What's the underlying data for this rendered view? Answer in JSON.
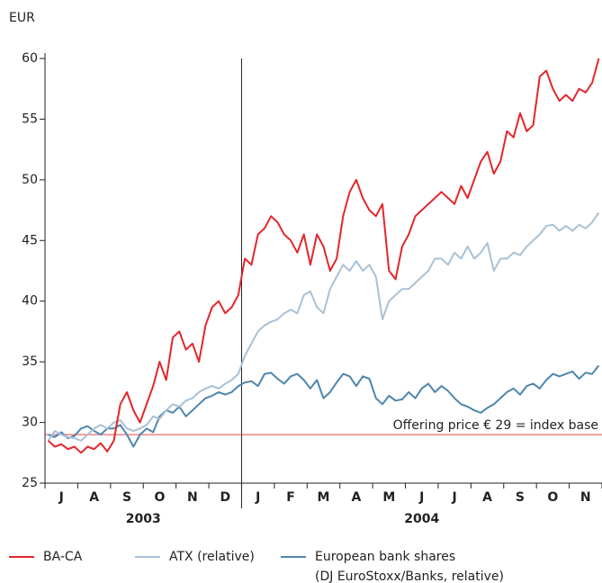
{
  "chart_data": {
    "type": "line",
    "y_axis_label": "EUR",
    "categories": [
      null,
      null,
      "J",
      null,
      null,
      null,
      null,
      "A",
      null,
      null,
      null,
      null,
      "S",
      null,
      null,
      null,
      null,
      "O",
      null,
      null,
      null,
      null,
      "N",
      null,
      null,
      null,
      null,
      "D",
      null,
      null,
      null,
      null,
      "J",
      null,
      null,
      null,
      null,
      "F",
      null,
      null,
      null,
      null,
      "M",
      null,
      null,
      null,
      null,
      "A",
      null,
      null,
      null,
      null,
      "M",
      null,
      null,
      null,
      null,
      "J",
      null,
      null,
      null,
      null,
      "J",
      null,
      null,
      null,
      null,
      "A",
      null,
      null,
      null,
      null,
      "S",
      null,
      null,
      null,
      null,
      "O",
      null,
      null,
      null,
      null,
      "N",
      null,
      null
    ],
    "years": [
      "2003",
      "2004"
    ],
    "series": [
      {
        "name": "BA-CA",
        "color": "#e3262b",
        "values": [
          28.5,
          28.0,
          28.2,
          27.8,
          28.0,
          27.5,
          28.0,
          27.8,
          28.3,
          27.6,
          28.5,
          31.5,
          32.5,
          31.0,
          30.0,
          31.5,
          33.0,
          35.0,
          33.5,
          37.0,
          37.5,
          36.0,
          36.5,
          35.0,
          38.0,
          39.5,
          40.0,
          39.0,
          39.5,
          40.5,
          43.5,
          43.0,
          45.5,
          46.0,
          47.0,
          46.5,
          45.5,
          45.0,
          44.0,
          45.5,
          43.0,
          45.5,
          44.5,
          42.5,
          43.5,
          47.0,
          49.0,
          50.0,
          48.5,
          47.5,
          47.0,
          48.0,
          42.5,
          41.8,
          44.5,
          45.5,
          47.0,
          47.5,
          48.0,
          48.5,
          49.0,
          48.5,
          48.0,
          49.5,
          48.5,
          50.0,
          51.5,
          52.3,
          50.5,
          51.5,
          54.0,
          53.5,
          55.5,
          54.0,
          54.5,
          58.5,
          59.0,
          57.5,
          56.5,
          57.0,
          56.5,
          57.5,
          57.2,
          58.0,
          60.0
        ]
      },
      {
        "name": "ATX (relative)",
        "color": "#a8c1d6",
        "values": [
          28.5,
          29.3,
          29.0,
          28.8,
          28.7,
          28.5,
          29.0,
          29.5,
          29.8,
          29.5,
          30.0,
          30.2,
          29.5,
          29.3,
          29.5,
          29.8,
          30.5,
          30.3,
          31.0,
          31.5,
          31.3,
          31.8,
          32.0,
          32.5,
          32.8,
          33.0,
          32.8,
          33.2,
          33.5,
          34.0,
          35.5,
          36.5,
          37.5,
          38.0,
          38.3,
          38.5,
          39.0,
          39.3,
          39.0,
          40.5,
          40.8,
          39.5,
          39.0,
          41.0,
          42.0,
          43.0,
          42.5,
          43.3,
          42.5,
          43.0,
          42.0,
          38.5,
          40.0,
          40.5,
          41.0,
          41.0,
          41.5,
          42.0,
          42.5,
          43.5,
          43.5,
          43.0,
          44.0,
          43.5,
          44.5,
          43.5,
          44.0,
          44.8,
          42.5,
          43.5,
          43.5,
          44.0,
          43.8,
          44.5,
          45.0,
          45.5,
          46.2,
          46.3,
          45.8,
          46.2,
          45.8,
          46.3,
          46.0,
          46.5,
          47.3
        ]
      },
      {
        "name": "European bank shares",
        "note": "(DJ EuroStoxx/Banks, relative)",
        "color": "#4e86ad",
        "values": [
          29.0,
          28.8,
          29.2,
          28.7,
          28.9,
          29.5,
          29.7,
          29.3,
          29.0,
          29.5,
          29.5,
          29.8,
          29.0,
          28.0,
          29.0,
          29.5,
          29.2,
          30.5,
          31.0,
          30.8,
          31.3,
          30.5,
          31.0,
          31.5,
          32.0,
          32.2,
          32.5,
          32.3,
          32.5,
          33.0,
          33.3,
          33.4,
          33.0,
          34.0,
          34.1,
          33.6,
          33.2,
          33.8,
          34.0,
          33.5,
          32.8,
          33.5,
          32.0,
          32.5,
          33.3,
          34.0,
          33.8,
          33.0,
          33.8,
          33.6,
          32.0,
          31.5,
          32.2,
          31.8,
          31.9,
          32.5,
          32.0,
          32.8,
          33.2,
          32.5,
          33.0,
          32.6,
          32.0,
          31.5,
          31.3,
          31.0,
          30.8,
          31.2,
          31.5,
          32.0,
          32.5,
          32.8,
          32.3,
          33.0,
          33.2,
          32.8,
          33.5,
          34.0,
          33.8,
          34.0,
          34.2,
          33.6,
          34.1,
          34.0,
          34.7
        ]
      }
    ],
    "reference_line": {
      "value": 29,
      "label": "Offering price € 29 = index base",
      "color": "#e3262b"
    },
    "ylim": [
      25,
      60
    ],
    "yticks": [
      25,
      30,
      35,
      40,
      45,
      50,
      55,
      60
    ],
    "grid": false
  }
}
